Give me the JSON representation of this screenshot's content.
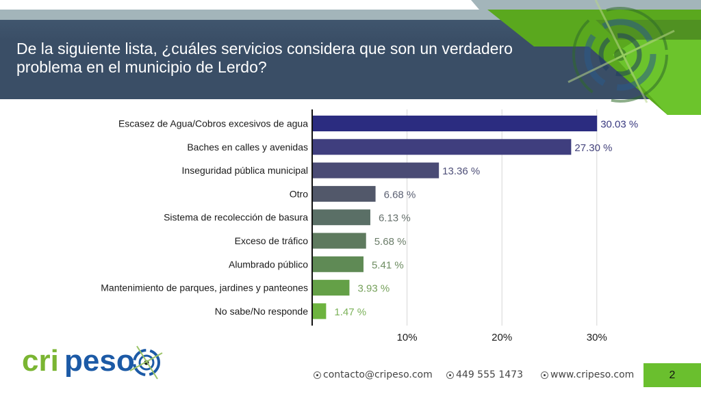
{
  "slide": {
    "title": "De la siguiente lista, ¿cuáles servicios considera que son un verdadero problema en el municipio de Lerdo?",
    "page_number": "2"
  },
  "brand": {
    "logo_text_green": "cri",
    "logo_text_blue": "peso",
    "green": "#7ab532",
    "blue": "#1c5aa6",
    "navy": "#3a4e66",
    "accent_green": "#6abf2e"
  },
  "footer": {
    "email": "contacto@cripeso.com",
    "phone": "449 555 1473",
    "website": "www.cripeso.com"
  },
  "chart_data": {
    "type": "bar",
    "orientation": "horizontal",
    "title": "",
    "xlabel": "",
    "ylabel": "",
    "categories": [
      "Escasez de Agua/Cobros excesivos de agua",
      "Baches en calles y avenidas",
      "Inseguridad pública municipal",
      "Otro",
      "Sistema de recolección de basura",
      "Exceso de tráfico",
      "Alumbrado público",
      "Mantenimiento de parques, jardines y panteones",
      "No sabe/No responde"
    ],
    "values": [
      30.03,
      27.3,
      13.36,
      6.68,
      6.13,
      5.68,
      5.41,
      3.93,
      1.47
    ],
    "value_labels": [
      "30.03 %",
      "27.30 %",
      "13.36 %",
      "6.68 %",
      "6.13 %",
      "5.68 %",
      "5.41 %",
      "3.93 %",
      "1.47 %"
    ],
    "colors": [
      "#2b2c80",
      "#3f3e7e",
      "#4a4b75",
      "#52586a",
      "#5a6f66",
      "#5e7a5e",
      "#5f8a55",
      "#64a047",
      "#6db33f"
    ],
    "label_colors": [
      "#3a3a80",
      "#44437c",
      "#4e4f78",
      "#5b6072",
      "#66706c",
      "#6a7c68",
      "#6e8d62",
      "#75a05a",
      "#7cb25a"
    ],
    "xlim": [
      0,
      32
    ],
    "xticks": [
      10,
      20,
      30
    ],
    "xtick_labels": [
      "10%",
      "20%",
      "30%"
    ],
    "grid": true,
    "legend": "none"
  }
}
